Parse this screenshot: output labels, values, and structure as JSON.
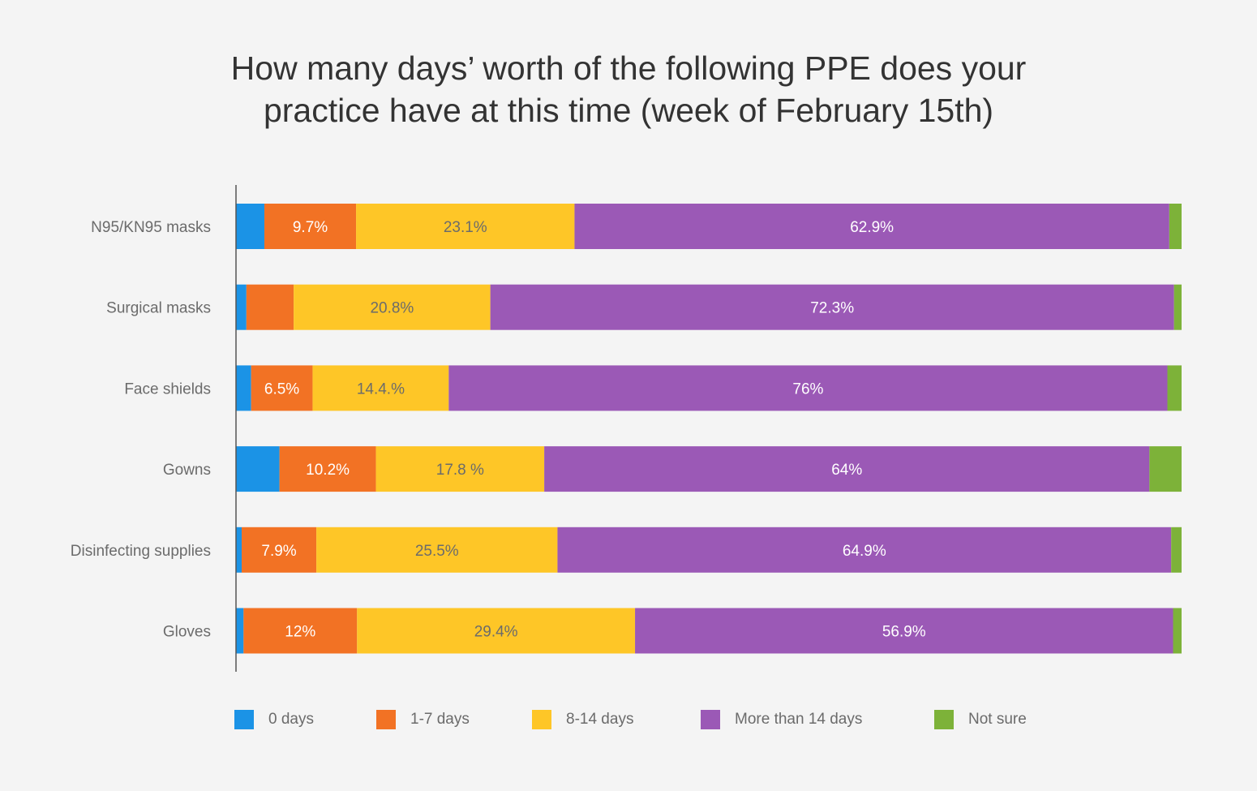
{
  "chart_data": {
    "type": "bar",
    "orientation": "horizontal",
    "stacked": true,
    "title": "How many days’ worth of the following PPE does your practice have at this time (week of February 15th)",
    "title_lines": [
      "How many days’ worth of the following PPE does your",
      "practice have at this time (week of February 15th)"
    ],
    "xlabel": "",
    "ylabel": "",
    "xlim": [
      0,
      100
    ],
    "grid": false,
    "legend_position": "bottom",
    "categories": [
      "N95/KN95 masks",
      "Surgical masks",
      "Face shields",
      "Gowns",
      "Disinfecting supplies",
      "Gloves"
    ],
    "series": [
      {
        "name": "0 days",
        "color": "#1b93e6",
        "label_color": "#ffffff",
        "values": [
          3.0,
          1.1,
          1.6,
          4.6,
          0.6,
          0.8
        ],
        "labels": [
          null,
          null,
          null,
          null,
          null,
          null
        ]
      },
      {
        "name": "1-7 days",
        "color": "#f27224",
        "label_color": "#ffffff",
        "values": [
          9.7,
          5.0,
          6.5,
          10.2,
          7.9,
          12
        ],
        "labels": [
          "9.7%",
          null,
          "6.5%",
          "10.2%",
          "7.9%",
          "12%"
        ]
      },
      {
        "name": "8-14 days",
        "color": "#fec627",
        "label_color": "#6b6b6b",
        "values": [
          23.1,
          20.8,
          14.4,
          17.8,
          25.5,
          29.4
        ],
        "labels": [
          "23.1%",
          "20.8%",
          "14.4.%",
          "17.8 %",
          "25.5%",
          "29.4%"
        ]
      },
      {
        "name": "More than 14 days",
        "color": "#9b59b6",
        "label_color": "#ffffff",
        "values": [
          62.9,
          72.3,
          76,
          64,
          64.9,
          56.9
        ],
        "labels": [
          "62.9%",
          "72.3%",
          "76%",
          "64%",
          "64.9%",
          "56.9%"
        ]
      },
      {
        "name": "Not sure",
        "color": "#7db239",
        "label_color": "#ffffff",
        "values": [
          1.3,
          0.8,
          1.5,
          3.4,
          1.1,
          0.9
        ],
        "labels": [
          null,
          null,
          null,
          null,
          null,
          null
        ]
      }
    ]
  }
}
